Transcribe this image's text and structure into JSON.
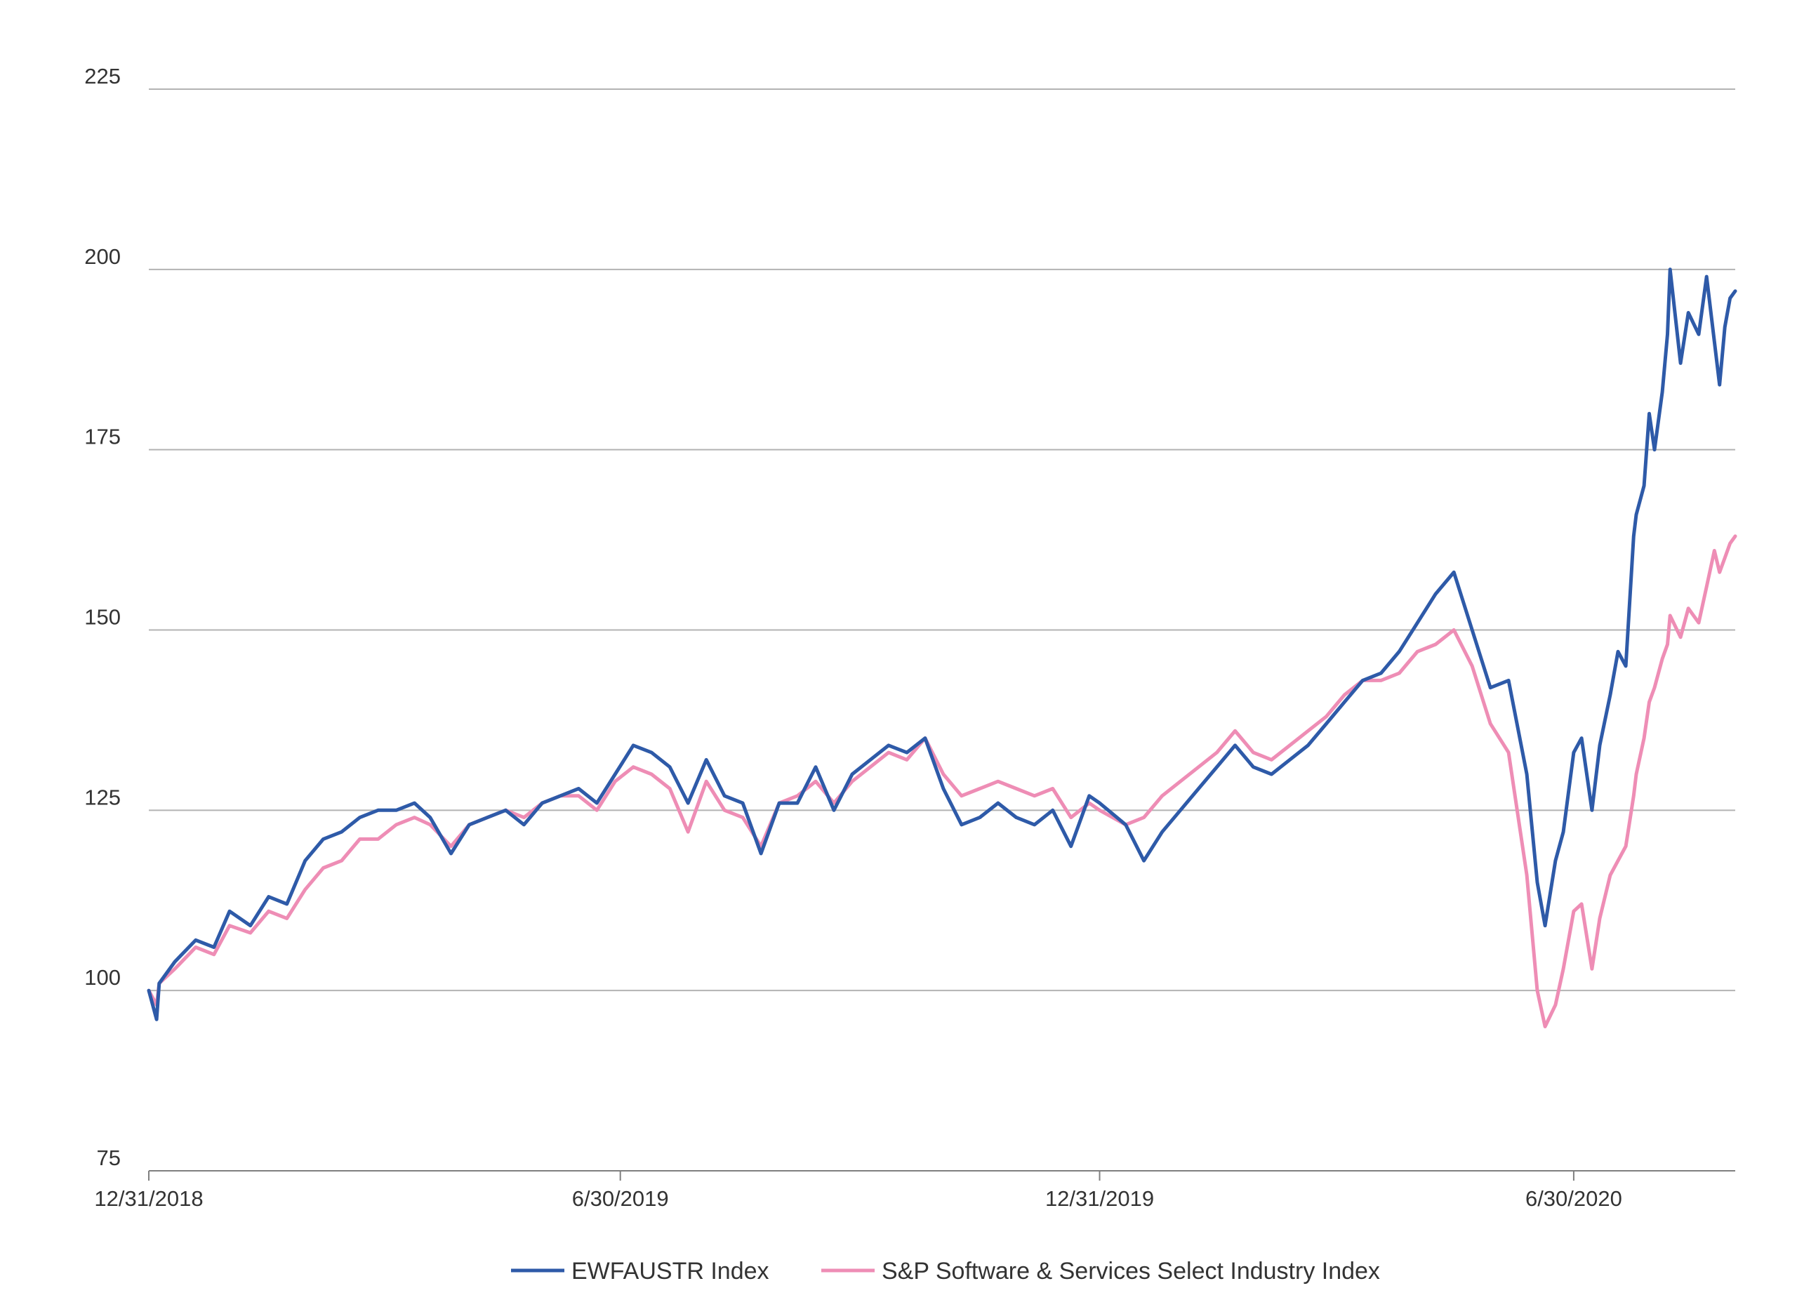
{
  "chart_data": {
    "type": "line",
    "title": "",
    "xlabel": "",
    "ylabel": "",
    "ylim": [
      75,
      225
    ],
    "yticks": [
      75,
      100,
      125,
      150,
      175,
      200,
      225
    ],
    "xlim": [
      "2018-12-31",
      "2020-08-31"
    ],
    "xticks": [
      {
        "label": "12/31/2018",
        "date": "2018-12-31"
      },
      {
        "label": "6/30/2019",
        "date": "2019-06-30"
      },
      {
        "label": "12/31/2019",
        "date": "2019-12-31"
      },
      {
        "label": "6/30/2020",
        "date": "2020-06-30"
      }
    ],
    "grid": true,
    "legend_position": "bottom-center",
    "series": [
      {
        "name": "EWFAUSTR Index",
        "color": "#2e5aa8",
        "points": [
          [
            "2018-12-31",
            100
          ],
          [
            "2019-01-03",
            96
          ],
          [
            "2019-01-04",
            101
          ],
          [
            "2019-01-10",
            104
          ],
          [
            "2019-01-18",
            107
          ],
          [
            "2019-01-25",
            106
          ],
          [
            "2019-01-31",
            111
          ],
          [
            "2019-02-08",
            109
          ],
          [
            "2019-02-15",
            113
          ],
          [
            "2019-02-22",
            112
          ],
          [
            "2019-03-01",
            118
          ],
          [
            "2019-03-08",
            121
          ],
          [
            "2019-03-15",
            122
          ],
          [
            "2019-03-22",
            124
          ],
          [
            "2019-03-29",
            125
          ],
          [
            "2019-04-05",
            125
          ],
          [
            "2019-04-12",
            126
          ],
          [
            "2019-04-18",
            124
          ],
          [
            "2019-04-26",
            119
          ],
          [
            "2019-05-03",
            123
          ],
          [
            "2019-05-10",
            124
          ],
          [
            "2019-05-17",
            125
          ],
          [
            "2019-05-24",
            123
          ],
          [
            "2019-05-31",
            126
          ],
          [
            "2019-06-07",
            127
          ],
          [
            "2019-06-14",
            128
          ],
          [
            "2019-06-21",
            126
          ],
          [
            "2019-06-28",
            130
          ],
          [
            "2019-07-05",
            134
          ],
          [
            "2019-07-12",
            133
          ],
          [
            "2019-07-19",
            131
          ],
          [
            "2019-07-26",
            126
          ],
          [
            "2019-08-02",
            132
          ],
          [
            "2019-08-09",
            127
          ],
          [
            "2019-08-16",
            126
          ],
          [
            "2019-08-23",
            119
          ],
          [
            "2019-08-30",
            126
          ],
          [
            "2019-09-06",
            126
          ],
          [
            "2019-09-13",
            131
          ],
          [
            "2019-09-20",
            125
          ],
          [
            "2019-09-27",
            130
          ],
          [
            "2019-10-04",
            132
          ],
          [
            "2019-10-11",
            134
          ],
          [
            "2019-10-18",
            133
          ],
          [
            "2019-10-25",
            135
          ],
          [
            "2019-11-01",
            128
          ],
          [
            "2019-11-08",
            123
          ],
          [
            "2019-11-15",
            124
          ],
          [
            "2019-11-22",
            126
          ],
          [
            "2019-11-29",
            124
          ],
          [
            "2019-12-06",
            123
          ],
          [
            "2019-12-13",
            125
          ],
          [
            "2019-12-20",
            120
          ],
          [
            "2019-12-27",
            127
          ],
          [
            "2019-12-31",
            126
          ],
          [
            "2020-01-10",
            123
          ],
          [
            "2020-01-17",
            118
          ],
          [
            "2020-01-24",
            122
          ],
          [
            "2020-01-31",
            125
          ],
          [
            "2020-02-07",
            128
          ],
          [
            "2020-02-14",
            131
          ],
          [
            "2020-02-21",
            134
          ],
          [
            "2020-02-28",
            131
          ],
          [
            "2020-03-06",
            130
          ],
          [
            "2020-03-13",
            132
          ],
          [
            "2020-03-20",
            134
          ],
          [
            "2020-03-27",
            137
          ],
          [
            "2020-04-03",
            140
          ],
          [
            "2020-04-10",
            143
          ],
          [
            "2020-04-17",
            144
          ],
          [
            "2020-04-24",
            147
          ],
          [
            "2020-05-01",
            151
          ],
          [
            "2020-05-08",
            155
          ],
          [
            "2020-05-15",
            158
          ],
          [
            "2020-05-22",
            150
          ],
          [
            "2020-05-29",
            142
          ],
          [
            "2020-06-05",
            143
          ],
          [
            "2020-06-12",
            130
          ],
          [
            "2020-06-16",
            115
          ],
          [
            "2020-06-19",
            109
          ],
          [
            "2020-06-23",
            118
          ],
          [
            "2020-06-26",
            122
          ],
          [
            "2020-06-30",
            133
          ],
          [
            "2020-07-03",
            135
          ],
          [
            "2020-07-07",
            125
          ],
          [
            "2020-07-10",
            134
          ],
          [
            "2020-07-14",
            141
          ],
          [
            "2020-07-17",
            147
          ],
          [
            "2020-07-20",
            145
          ],
          [
            "2020-07-23",
            163
          ],
          [
            "2020-07-24",
            166
          ],
          [
            "2020-07-27",
            170
          ],
          [
            "2020-07-29",
            180
          ],
          [
            "2020-07-31",
            175
          ],
          [
            "2020-08-03",
            183
          ],
          [
            "2020-08-05",
            191
          ],
          [
            "2020-08-06",
            200
          ],
          [
            "2020-08-10",
            187
          ],
          [
            "2020-08-13",
            194
          ],
          [
            "2020-08-17",
            191
          ],
          [
            "2020-08-20",
            199
          ],
          [
            "2020-08-23",
            190
          ],
          [
            "2020-08-25",
            184
          ],
          [
            "2020-08-27",
            192
          ],
          [
            "2020-08-29",
            196
          ],
          [
            "2020-08-31",
            197
          ]
        ]
      },
      {
        "name": "S&P Software & Services Select Industry Index",
        "color": "#ee8db5",
        "points": [
          [
            "2018-12-31",
            100
          ],
          [
            "2019-01-03",
            98
          ],
          [
            "2019-01-04",
            101
          ],
          [
            "2019-01-10",
            103
          ],
          [
            "2019-01-18",
            106
          ],
          [
            "2019-01-25",
            105
          ],
          [
            "2019-01-31",
            109
          ],
          [
            "2019-02-08",
            108
          ],
          [
            "2019-02-15",
            111
          ],
          [
            "2019-02-22",
            110
          ],
          [
            "2019-03-01",
            114
          ],
          [
            "2019-03-08",
            117
          ],
          [
            "2019-03-15",
            118
          ],
          [
            "2019-03-22",
            121
          ],
          [
            "2019-03-29",
            121
          ],
          [
            "2019-04-05",
            123
          ],
          [
            "2019-04-12",
            124
          ],
          [
            "2019-04-18",
            123
          ],
          [
            "2019-04-26",
            120
          ],
          [
            "2019-05-03",
            123
          ],
          [
            "2019-05-10",
            124
          ],
          [
            "2019-05-17",
            125
          ],
          [
            "2019-05-24",
            124
          ],
          [
            "2019-05-31",
            126
          ],
          [
            "2019-06-07",
            127
          ],
          [
            "2019-06-14",
            127
          ],
          [
            "2019-06-21",
            125
          ],
          [
            "2019-06-28",
            129
          ],
          [
            "2019-07-05",
            131
          ],
          [
            "2019-07-12",
            130
          ],
          [
            "2019-07-19",
            128
          ],
          [
            "2019-07-26",
            122
          ],
          [
            "2019-08-02",
            129
          ],
          [
            "2019-08-09",
            125
          ],
          [
            "2019-08-16",
            124
          ],
          [
            "2019-08-23",
            120
          ],
          [
            "2019-08-30",
            126
          ],
          [
            "2019-09-06",
            127
          ],
          [
            "2019-09-13",
            129
          ],
          [
            "2019-09-20",
            126
          ],
          [
            "2019-09-27",
            129
          ],
          [
            "2019-10-04",
            131
          ],
          [
            "2019-10-11",
            133
          ],
          [
            "2019-10-18",
            132
          ],
          [
            "2019-10-25",
            135
          ],
          [
            "2019-11-01",
            130
          ],
          [
            "2019-11-08",
            127
          ],
          [
            "2019-11-15",
            128
          ],
          [
            "2019-11-22",
            129
          ],
          [
            "2019-11-29",
            128
          ],
          [
            "2019-12-06",
            127
          ],
          [
            "2019-12-13",
            128
          ],
          [
            "2019-12-20",
            124
          ],
          [
            "2019-12-27",
            126
          ],
          [
            "2019-12-31",
            125
          ],
          [
            "2020-01-10",
            123
          ],
          [
            "2020-01-17",
            124
          ],
          [
            "2020-01-24",
            127
          ],
          [
            "2020-01-31",
            129
          ],
          [
            "2020-02-07",
            131
          ],
          [
            "2020-02-14",
            133
          ],
          [
            "2020-02-21",
            136
          ],
          [
            "2020-02-28",
            133
          ],
          [
            "2020-03-06",
            132
          ],
          [
            "2020-03-13",
            134
          ],
          [
            "2020-03-20",
            136
          ],
          [
            "2020-03-27",
            138
          ],
          [
            "2020-04-03",
            141
          ],
          [
            "2020-04-10",
            143
          ],
          [
            "2020-04-17",
            143
          ],
          [
            "2020-04-24",
            144
          ],
          [
            "2020-05-01",
            147
          ],
          [
            "2020-05-08",
            148
          ],
          [
            "2020-05-15",
            150
          ],
          [
            "2020-05-22",
            145
          ],
          [
            "2020-05-29",
            137
          ],
          [
            "2020-06-05",
            133
          ],
          [
            "2020-06-12",
            116
          ],
          [
            "2020-06-16",
            100
          ],
          [
            "2020-06-19",
            95
          ],
          [
            "2020-06-23",
            98
          ],
          [
            "2020-06-26",
            103
          ],
          [
            "2020-06-30",
            111
          ],
          [
            "2020-07-03",
            112
          ],
          [
            "2020-07-07",
            103
          ],
          [
            "2020-07-10",
            110
          ],
          [
            "2020-07-14",
            116
          ],
          [
            "2020-07-17",
            118
          ],
          [
            "2020-07-20",
            120
          ],
          [
            "2020-07-23",
            127
          ],
          [
            "2020-07-24",
            130
          ],
          [
            "2020-07-27",
            135
          ],
          [
            "2020-07-29",
            140
          ],
          [
            "2020-07-31",
            142
          ],
          [
            "2020-08-03",
            146
          ],
          [
            "2020-08-05",
            148
          ],
          [
            "2020-08-06",
            152
          ],
          [
            "2020-08-10",
            149
          ],
          [
            "2020-08-13",
            153
          ],
          [
            "2020-08-17",
            151
          ],
          [
            "2020-08-20",
            156
          ],
          [
            "2020-08-23",
            161
          ],
          [
            "2020-08-25",
            158
          ],
          [
            "2020-08-27",
            160
          ],
          [
            "2020-08-29",
            162
          ],
          [
            "2020-08-31",
            163
          ]
        ]
      }
    ]
  }
}
